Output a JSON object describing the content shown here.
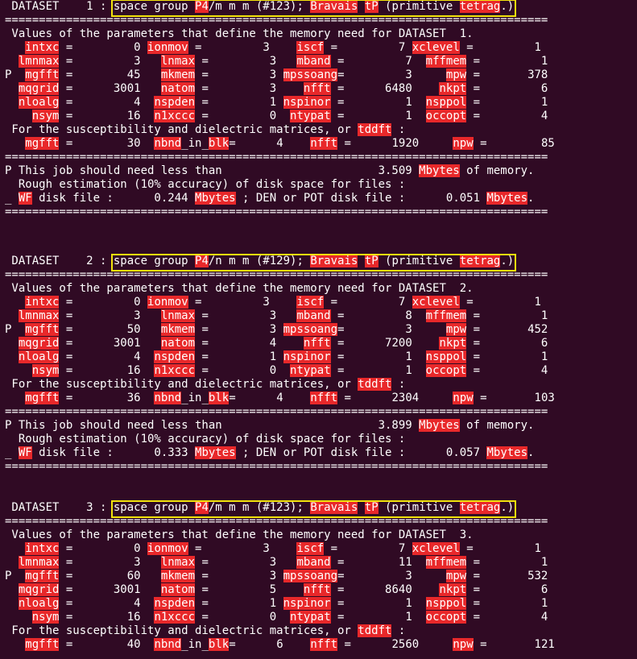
{
  "highlight_color": "#e8282a",
  "box_color": "#f2e30c",
  "background_color": "#300a24",
  "datasets": [
    {
      "header": [
        [
          " DATASET    1 : ",
          0
        ],
        [
          "space group ",
          0
        ],
        [
          "P4",
          1
        ],
        [
          "/m m m (#123); ",
          0
        ],
        [
          "Bravais",
          1
        ],
        [
          " ",
          0
        ],
        [
          "tP",
          1
        ],
        [
          " (primitive ",
          0
        ],
        [
          "tetrag",
          1
        ],
        [
          ".)",
          0
        ]
      ],
      "lines": [
        [
          [
            "================================================================================",
            0
          ]
        ],
        [
          [
            " Values of the parameters that define the memory need for DATASET  1.",
            0
          ]
        ],
        [
          [
            "   ",
            0
          ],
          [
            "intxc",
            1
          ],
          [
            " =         0 ",
            0
          ],
          [
            "ionmov",
            1
          ],
          [
            " =         3    ",
            0
          ],
          [
            "iscf",
            1
          ],
          [
            " =         7 ",
            0
          ],
          [
            "xclevel",
            1
          ],
          [
            " =         1",
            0
          ]
        ],
        [
          [
            "  ",
            0
          ],
          [
            "lmnmax",
            1
          ],
          [
            " =         3   ",
            0
          ],
          [
            "lnmax",
            1
          ],
          [
            " =         3   ",
            0
          ],
          [
            "mband",
            1
          ],
          [
            " =         7  ",
            0
          ],
          [
            "mffmem",
            1
          ],
          [
            " =         1",
            0
          ]
        ],
        [
          [
            "P  ",
            0
          ],
          [
            "mgfft",
            1
          ],
          [
            " =        45   ",
            0
          ],
          [
            "mkmem",
            1
          ],
          [
            " =         3 ",
            0
          ],
          [
            "mpssoang",
            1
          ],
          [
            "=         3     ",
            0
          ],
          [
            "mpw",
            1
          ],
          [
            " =       378",
            0
          ]
        ],
        [
          [
            "  ",
            0
          ],
          [
            "mqgrid",
            1
          ],
          [
            " =      3001   ",
            0
          ],
          [
            "natom",
            1
          ],
          [
            " =         3    ",
            0
          ],
          [
            "nfft",
            1
          ],
          [
            " =      6480    ",
            0
          ],
          [
            "nkpt",
            1
          ],
          [
            " =         6",
            0
          ]
        ],
        [
          [
            "  ",
            0
          ],
          [
            "nloalg",
            1
          ],
          [
            " =         4  ",
            0
          ],
          [
            "nspden",
            1
          ],
          [
            " =         1 ",
            0
          ],
          [
            "nspinor",
            1
          ],
          [
            " =         1  ",
            0
          ],
          [
            "nsppol",
            1
          ],
          [
            " =         1",
            0
          ]
        ],
        [
          [
            "    ",
            0
          ],
          [
            "nsym",
            1
          ],
          [
            " =        16  ",
            0
          ],
          [
            "n1xccc",
            1
          ],
          [
            " =         0  ",
            0
          ],
          [
            "ntypat",
            1
          ],
          [
            " =         1  ",
            0
          ],
          [
            "occopt",
            1
          ],
          [
            " =         4",
            0
          ]
        ],
        [
          [
            " For the susceptibility and dielectric matrices, or ",
            0
          ],
          [
            "tddft",
            1
          ],
          [
            " :",
            0
          ]
        ],
        [
          [
            "   ",
            0
          ],
          [
            "mgfft",
            1
          ],
          [
            " =        30  ",
            0
          ],
          [
            "nbnd",
            1
          ],
          [
            "_in_",
            0
          ],
          [
            "blk",
            1
          ],
          [
            "=      4    ",
            0
          ],
          [
            "nfft",
            1
          ],
          [
            " =      1920     ",
            0
          ],
          [
            "npw",
            1
          ],
          [
            " =        85",
            0
          ]
        ],
        [
          [
            "================================================================================",
            0
          ]
        ],
        [
          [
            "P This job should need less than                       3.509 ",
            0
          ],
          [
            "Mbytes",
            1
          ],
          [
            " of memory.",
            0
          ]
        ],
        [
          [
            "  Rough estimation (10% accuracy) of disk space for files :",
            0
          ]
        ],
        [
          [
            "_ ",
            0
          ],
          [
            "WF",
            1
          ],
          [
            " disk file :      0.244 ",
            0
          ],
          [
            "Mbytes",
            1
          ],
          [
            " ; DEN or POT disk file :      0.051 ",
            0
          ],
          [
            "Mbytes",
            1
          ],
          [
            ".",
            0
          ]
        ],
        [
          [
            "================================================================================",
            0
          ]
        ]
      ]
    },
    {
      "header": [
        [
          " DATASET    2 : ",
          0
        ],
        [
          "space group ",
          0
        ],
        [
          "P4",
          1
        ],
        [
          "/n m m (#129); ",
          0
        ],
        [
          "Bravais",
          1
        ],
        [
          " ",
          0
        ],
        [
          "tP",
          1
        ],
        [
          " (primitive ",
          0
        ],
        [
          "tetrag",
          1
        ],
        [
          ".)",
          0
        ]
      ],
      "lines": [
        [
          [
            "================================================================================",
            0
          ]
        ],
        [
          [
            " Values of the parameters that define the memory need for DATASET  2.",
            0
          ]
        ],
        [
          [
            "   ",
            0
          ],
          [
            "intxc",
            1
          ],
          [
            " =         0 ",
            0
          ],
          [
            "ionmov",
            1
          ],
          [
            " =         3    ",
            0
          ],
          [
            "iscf",
            1
          ],
          [
            " =         7 ",
            0
          ],
          [
            "xclevel",
            1
          ],
          [
            " =         1",
            0
          ]
        ],
        [
          [
            "  ",
            0
          ],
          [
            "lmnmax",
            1
          ],
          [
            " =         3   ",
            0
          ],
          [
            "lnmax",
            1
          ],
          [
            " =         3   ",
            0
          ],
          [
            "mband",
            1
          ],
          [
            " =         8  ",
            0
          ],
          [
            "mffmem",
            1
          ],
          [
            " =         1",
            0
          ]
        ],
        [
          [
            "P  ",
            0
          ],
          [
            "mgfft",
            1
          ],
          [
            " =        50   ",
            0
          ],
          [
            "mkmem",
            1
          ],
          [
            " =         3 ",
            0
          ],
          [
            "mpssoang",
            1
          ],
          [
            "=         3     ",
            0
          ],
          [
            "mpw",
            1
          ],
          [
            " =       452",
            0
          ]
        ],
        [
          [
            "  ",
            0
          ],
          [
            "mqgrid",
            1
          ],
          [
            " =      3001   ",
            0
          ],
          [
            "natom",
            1
          ],
          [
            " =         4    ",
            0
          ],
          [
            "nfft",
            1
          ],
          [
            " =      7200    ",
            0
          ],
          [
            "nkpt",
            1
          ],
          [
            " =         6",
            0
          ]
        ],
        [
          [
            "  ",
            0
          ],
          [
            "nloalg",
            1
          ],
          [
            " =         4  ",
            0
          ],
          [
            "nspden",
            1
          ],
          [
            " =         1 ",
            0
          ],
          [
            "nspinor",
            1
          ],
          [
            " =         1  ",
            0
          ],
          [
            "nsppol",
            1
          ],
          [
            " =         1",
            0
          ]
        ],
        [
          [
            "    ",
            0
          ],
          [
            "nsym",
            1
          ],
          [
            " =        16  ",
            0
          ],
          [
            "n1xccc",
            1
          ],
          [
            " =         0  ",
            0
          ],
          [
            "ntypat",
            1
          ],
          [
            " =         1  ",
            0
          ],
          [
            "occopt",
            1
          ],
          [
            " =         4",
            0
          ]
        ],
        [
          [
            " For the susceptibility and dielectric matrices, or ",
            0
          ],
          [
            "tddft",
            1
          ],
          [
            " :",
            0
          ]
        ],
        [
          [
            "   ",
            0
          ],
          [
            "mgfft",
            1
          ],
          [
            " =        36  ",
            0
          ],
          [
            "nbnd",
            1
          ],
          [
            "_in_",
            0
          ],
          [
            "blk",
            1
          ],
          [
            "=      4    ",
            0
          ],
          [
            "nfft",
            1
          ],
          [
            " =      2304     ",
            0
          ],
          [
            "npw",
            1
          ],
          [
            " =       103",
            0
          ]
        ],
        [
          [
            "================================================================================",
            0
          ]
        ],
        [
          [
            "P This job should need less than                       3.899 ",
            0
          ],
          [
            "Mbytes",
            1
          ],
          [
            " of memory.",
            0
          ]
        ],
        [
          [
            "  Rough estimation (10% accuracy) of disk space for files :",
            0
          ]
        ],
        [
          [
            "_ ",
            0
          ],
          [
            "WF",
            1
          ],
          [
            " disk file :      0.333 ",
            0
          ],
          [
            "Mbytes",
            1
          ],
          [
            " ; DEN or POT disk file :      0.057 ",
            0
          ],
          [
            "Mbytes",
            1
          ],
          [
            ".",
            0
          ]
        ],
        [
          [
            "================================================================================",
            0
          ]
        ]
      ]
    },
    {
      "header": [
        [
          " DATASET    3 : ",
          0
        ],
        [
          "space group ",
          0
        ],
        [
          "P4",
          1
        ],
        [
          "/m m m (#123); ",
          0
        ],
        [
          "Bravais",
          1
        ],
        [
          " ",
          0
        ],
        [
          "tP",
          1
        ],
        [
          " (primitive ",
          0
        ],
        [
          "tetrag",
          1
        ],
        [
          ".)",
          0
        ]
      ],
      "lines": [
        [
          [
            "================================================================================",
            0
          ]
        ],
        [
          [
            " Values of the parameters that define the memory need for DATASET  3.",
            0
          ]
        ],
        [
          [
            "   ",
            0
          ],
          [
            "intxc",
            1
          ],
          [
            " =         0 ",
            0
          ],
          [
            "ionmov",
            1
          ],
          [
            " =         3    ",
            0
          ],
          [
            "iscf",
            1
          ],
          [
            " =         7 ",
            0
          ],
          [
            "xclevel",
            1
          ],
          [
            " =         1",
            0
          ]
        ],
        [
          [
            "  ",
            0
          ],
          [
            "lmnmax",
            1
          ],
          [
            " =         3   ",
            0
          ],
          [
            "lnmax",
            1
          ],
          [
            " =         3   ",
            0
          ],
          [
            "mband",
            1
          ],
          [
            " =        11  ",
            0
          ],
          [
            "mffmem",
            1
          ],
          [
            " =         1",
            0
          ]
        ],
        [
          [
            "P  ",
            0
          ],
          [
            "mgfft",
            1
          ],
          [
            " =        60   ",
            0
          ],
          [
            "mkmem",
            1
          ],
          [
            " =         3 ",
            0
          ],
          [
            "mpssoang",
            1
          ],
          [
            "=         3     ",
            0
          ],
          [
            "mpw",
            1
          ],
          [
            " =       532",
            0
          ]
        ],
        [
          [
            "  ",
            0
          ],
          [
            "mqgrid",
            1
          ],
          [
            " =      3001   ",
            0
          ],
          [
            "natom",
            1
          ],
          [
            " =         5    ",
            0
          ],
          [
            "nfft",
            1
          ],
          [
            " =      8640    ",
            0
          ],
          [
            "nkpt",
            1
          ],
          [
            " =         6",
            0
          ]
        ],
        [
          [
            "  ",
            0
          ],
          [
            "nloalg",
            1
          ],
          [
            " =         4  ",
            0
          ],
          [
            "nspden",
            1
          ],
          [
            " =         1 ",
            0
          ],
          [
            "nspinor",
            1
          ],
          [
            " =         1  ",
            0
          ],
          [
            "nsppol",
            1
          ],
          [
            " =         1",
            0
          ]
        ],
        [
          [
            "    ",
            0
          ],
          [
            "nsym",
            1
          ],
          [
            " =        16  ",
            0
          ],
          [
            "n1xccc",
            1
          ],
          [
            " =         0  ",
            0
          ],
          [
            "ntypat",
            1
          ],
          [
            " =         1  ",
            0
          ],
          [
            "occopt",
            1
          ],
          [
            " =         4",
            0
          ]
        ],
        [
          [
            " For the susceptibility and dielectric matrices, or ",
            0
          ],
          [
            "tddft",
            1
          ],
          [
            " :",
            0
          ]
        ],
        [
          [
            "   ",
            0
          ],
          [
            "mgfft",
            1
          ],
          [
            " =        40  ",
            0
          ],
          [
            "nbnd",
            1
          ],
          [
            "_in_",
            0
          ],
          [
            "blk",
            1
          ],
          [
            "=      6    ",
            0
          ],
          [
            "nfft",
            1
          ],
          [
            " =      2560     ",
            0
          ],
          [
            "npw",
            1
          ],
          [
            " =       121",
            0
          ]
        ]
      ]
    }
  ]
}
